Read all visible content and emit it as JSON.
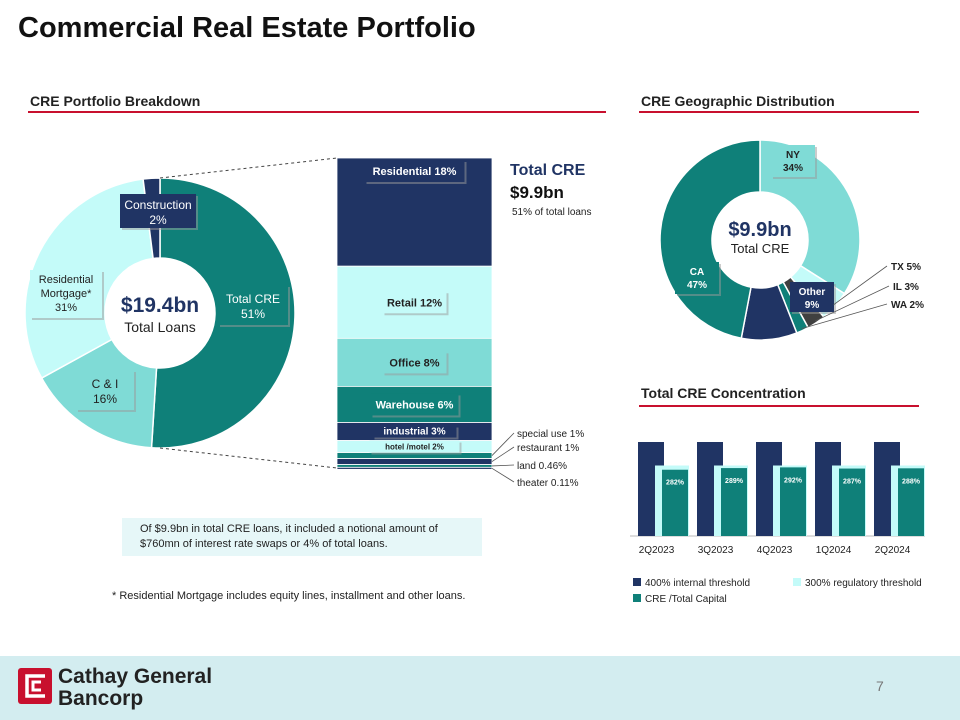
{
  "page": {
    "title": "Commercial Real Estate Portfolio",
    "page_number": "7",
    "footnote": "* Residential Mortgage includes equity lines, installment and other loans.",
    "callout": "Of $9.9bn in total CRE loans, it included a notional amount of $760mn of interest rate swaps or 4% of total loans.",
    "logo": {
      "line1": "Cathay General",
      "line2": "Bancorp"
    }
  },
  "sections": {
    "breakdown": "CRE Portfolio Breakdown",
    "geographic": "CRE Geographic Distribution",
    "concentration": "Total CRE Concentration"
  },
  "colors": {
    "navy": "#203464",
    "teal": "#0f8079",
    "light_cyan": "#c4fbf9",
    "mid_cyan": "#7fdbd6",
    "accent_red": "#c8102e",
    "footer_bg": "#d3edf0"
  },
  "chart_data": [
    {
      "type": "pie",
      "variant": "donut",
      "center_value": "$19.4bn",
      "center_label": "Total Loans",
      "slices": [
        {
          "label": "Total CRE",
          "pct_label": "51%",
          "value": 51,
          "color": "#0f8079"
        },
        {
          "label": "C & I",
          "pct_label": "16%",
          "value": 16,
          "color": "#7fdbd6"
        },
        {
          "label": "Residential Mortgage*",
          "pct_label": "31%",
          "value": 31,
          "color": "#c4fbf9"
        },
        {
          "label": "Construction",
          "pct_label": "2%",
          "value": 2,
          "color": "#203464"
        }
      ]
    },
    {
      "type": "bar",
      "variant": "stacked-100",
      "title": "Total CRE",
      "value": "$9.9bn",
      "subtitle": "51% of total loans",
      "segments": [
        {
          "label": "Residential 18%",
          "value": 18,
          "color": "#203464"
        },
        {
          "label": "Retail 12%",
          "value": 12,
          "color": "#c4fbf9"
        },
        {
          "label": "Office 8%",
          "value": 8,
          "color": "#7fdbd6"
        },
        {
          "label": "Warehouse 6%",
          "value": 6,
          "color": "#0f8079"
        },
        {
          "label": "industrial  3%",
          "value": 3,
          "color": "#203464"
        },
        {
          "label": "hotel /motel  2%",
          "value": 2,
          "color": "#c4fbf9"
        },
        {
          "label": "special use 1%",
          "value": 1,
          "color": "#0f8079"
        },
        {
          "label": "restaurant 1%",
          "value": 1,
          "color": "#203464"
        },
        {
          "label": "land 0.46%",
          "value": 0.46,
          "color": "#0f8079"
        },
        {
          "label": "theater 0.11%",
          "value": 0.11,
          "color": "#203464"
        }
      ]
    },
    {
      "type": "pie",
      "variant": "donut",
      "center_value": "$9.9bn",
      "center_label": "Total CRE",
      "slices": [
        {
          "label": "NY",
          "pct_label": "34%",
          "value": 34,
          "color": "#7fdbd6"
        },
        {
          "label": "TX",
          "pct_label": "5%",
          "value": 5,
          "color": "#c4fbf9"
        },
        {
          "label": "IL",
          "pct_label": "3%",
          "value": 3,
          "color": "#404040"
        },
        {
          "label": "WA",
          "pct_label": "2%",
          "value": 2,
          "color": "#0f8079"
        },
        {
          "label": "Other",
          "pct_label": "9%",
          "value": 9,
          "color": "#203464"
        },
        {
          "label": "CA",
          "pct_label": "47%",
          "value": 47,
          "color": "#0f8079"
        }
      ]
    },
    {
      "type": "bar",
      "title": "Total CRE Concentration",
      "categories": [
        "2Q2023",
        "3Q2023",
        "4Q2023",
        "1Q2024",
        "2Q2024"
      ],
      "series": [
        {
          "name": "400% internal threshold",
          "values": [
            400,
            400,
            400,
            400,
            400
          ],
          "color": "#203464"
        },
        {
          "name": "300% regulatory threshold",
          "values": [
            300,
            300,
            300,
            300,
            300
          ],
          "color": "#c4fbf9"
        },
        {
          "name": "CRE /Total Capital",
          "values": [
            282,
            289,
            292,
            287,
            288
          ],
          "labels": [
            "282%",
            "289%",
            "292%",
            "287%",
            "288%"
          ],
          "color": "#0f8079"
        }
      ],
      "ylim": [
        0,
        400
      ],
      "legend": "bottom"
    }
  ]
}
